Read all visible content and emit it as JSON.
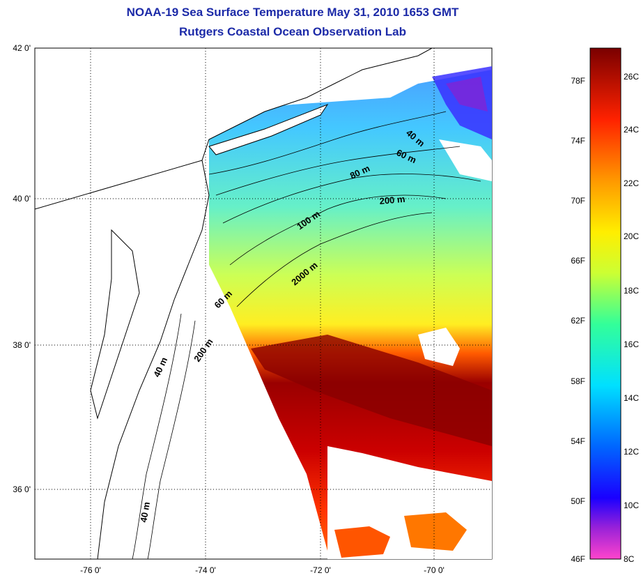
{
  "title": {
    "line1": "NOAA-19 Sea Surface Temperature May 31, 2010 1653 GMT",
    "line2": "Rutgers Coastal Ocean Observation Lab"
  },
  "map": {
    "lat_ticks": [
      "42 0'",
      "40 0'",
      "38 0'",
      "36 0'"
    ],
    "lon_ticks": [
      "-76 0'",
      "-74 0'",
      "-72 0'",
      "-70 0'"
    ],
    "contour_labels": [
      "40 m",
      "60 m",
      "80 m",
      "200 m",
      "100 m",
      "2000 m",
      "60 m",
      "40 m",
      "200 m",
      "40 m"
    ],
    "land_color": "#ffffff",
    "coast_color": "#000000"
  },
  "colorbar": {
    "fahrenheit_labels": [
      "78F",
      "74F",
      "70F",
      "66F",
      "62F",
      "58F",
      "54F",
      "50F",
      "46F"
    ],
    "celsius_labels": [
      "26C",
      "24C",
      "22C",
      "20C",
      "18C",
      "16C",
      "14C",
      "12C",
      "10C",
      "8C"
    ],
    "colors": [
      "#ff44cc",
      "#6a00b0",
      "#0000ff",
      "#0088ff",
      "#00e8ff",
      "#44ff99",
      "#ccff33",
      "#ffee00",
      "#ff9900",
      "#ff2200",
      "#cc0000",
      "#7a0000"
    ]
  }
}
